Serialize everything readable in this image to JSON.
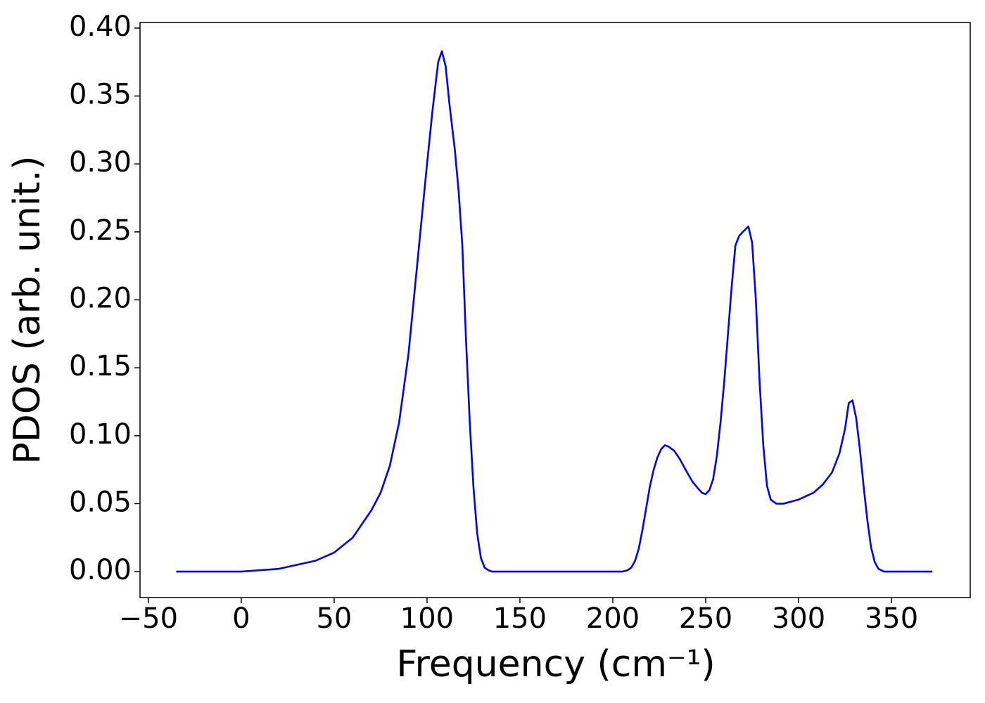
{
  "chart_data": {
    "type": "line",
    "x_label": "Frequency (cm⁻¹)",
    "y_label": "PDOS (arb. unit.)",
    "series": [
      {
        "color": "#0000ff",
        "x": [
          -35,
          0,
          20,
          40,
          50,
          60,
          70,
          75,
          80,
          85,
          90,
          95,
          100,
          103,
          106,
          108,
          110,
          112,
          115,
          117,
          119,
          121,
          123,
          125,
          127,
          129,
          131,
          133,
          135,
          150,
          200,
          205,
          208,
          210,
          212,
          214,
          216,
          218,
          220,
          222,
          224,
          226,
          228,
          230,
          233,
          236,
          240,
          243,
          246,
          248,
          250,
          252,
          254,
          256,
          258,
          260,
          262,
          264,
          266,
          268,
          270,
          273,
          275,
          277,
          279,
          281,
          283,
          285,
          288,
          292,
          300,
          308,
          313,
          318,
          322,
          325,
          327,
          329,
          331,
          333,
          335,
          337,
          339,
          341,
          343,
          346,
          372
        ],
        "values": [
          0,
          0,
          0.002,
          0.008,
          0.014,
          0.025,
          0.045,
          0.058,
          0.078,
          0.11,
          0.16,
          0.23,
          0.3,
          0.34,
          0.375,
          0.383,
          0.372,
          0.345,
          0.31,
          0.28,
          0.24,
          0.17,
          0.11,
          0.062,
          0.028,
          0.01,
          0.003,
          0.001,
          0,
          0,
          0,
          0,
          0.001,
          0.003,
          0.008,
          0.017,
          0.031,
          0.047,
          0.063,
          0.075,
          0.084,
          0.09,
          0.093,
          0.092,
          0.089,
          0.083,
          0.073,
          0.066,
          0.061,
          0.058,
          0.057,
          0.06,
          0.068,
          0.085,
          0.11,
          0.14,
          0.175,
          0.21,
          0.24,
          0.247,
          0.25,
          0.254,
          0.242,
          0.2,
          0.14,
          0.093,
          0.063,
          0.053,
          0.05,
          0.05,
          0.053,
          0.058,
          0.064,
          0.073,
          0.087,
          0.105,
          0.124,
          0.126,
          0.113,
          0.09,
          0.063,
          0.038,
          0.018,
          0.007,
          0.002,
          0,
          0
        ]
      }
    ],
    "xlim": [
      -54.5,
      392.4
    ],
    "ylim": [
      -0.0191,
      0.4041
    ],
    "xticks": [
      {
        "value": -50,
        "label": "−50"
      },
      0,
      50,
      100,
      150,
      200,
      250,
      300,
      350
    ],
    "yticks": [
      {
        "value": 0,
        "label": "0.00"
      },
      {
        "value": 0.05,
        "label": "0.05"
      },
      {
        "value": 0.1,
        "label": "0.10"
      },
      {
        "value": 0.15,
        "label": "0.15"
      },
      {
        "value": 0.2,
        "label": "0.20"
      },
      {
        "value": 0.25,
        "label": "0.25"
      },
      {
        "value": 0.3,
        "label": "0.30"
      },
      {
        "value": 0.35,
        "label": "0.35"
      },
      {
        "value": 0.4,
        "label": "0.40"
      }
    ],
    "grid": false
  }
}
